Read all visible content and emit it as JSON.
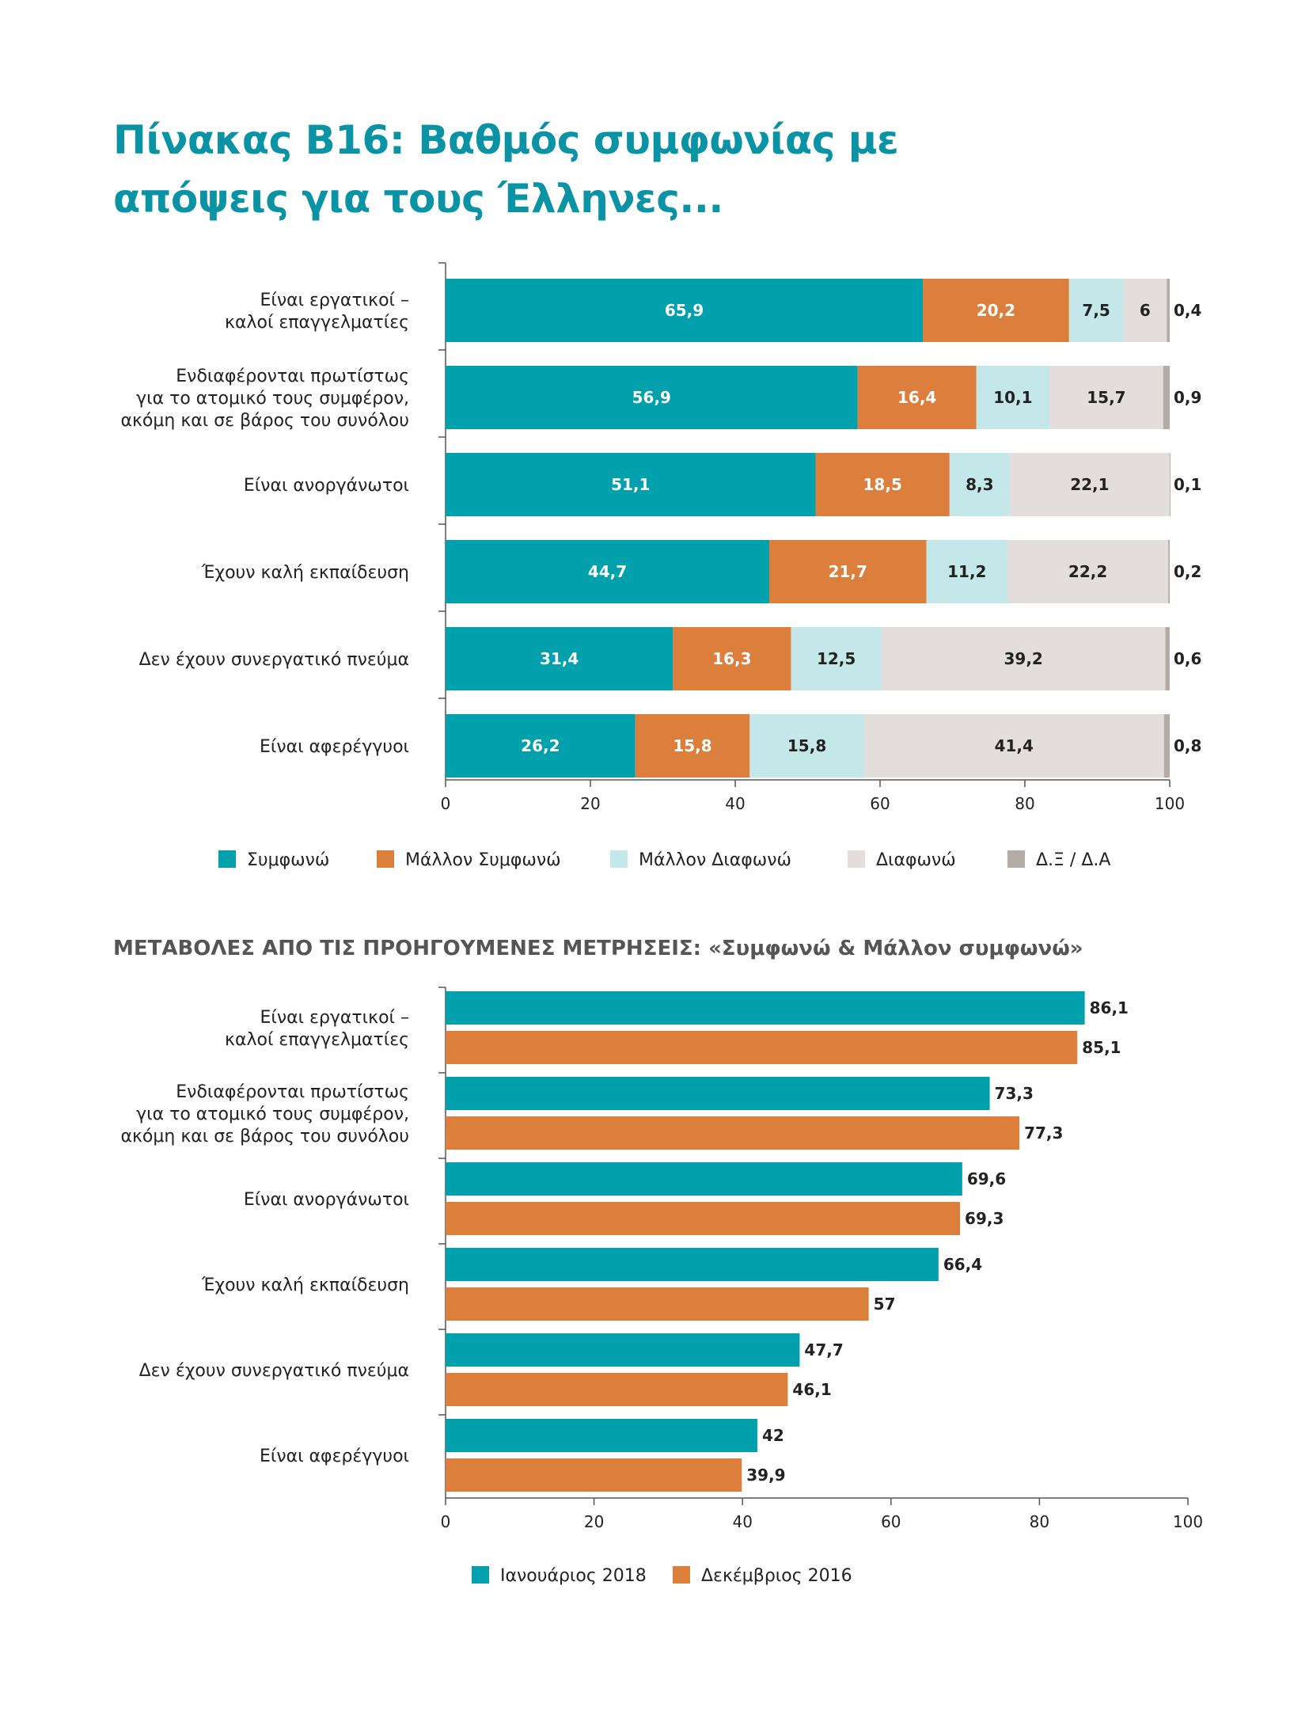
{
  "title": {
    "line1": "Πίνακας Β16: Βαθμός συμφωνίας με",
    "line2": "απόψεις για τους Έλληνες..."
  },
  "section2_title": "ΜΕΤΑΒΟΛΕΣ ΑΠΟ ΤΙΣ ΠΡΟΗΓΟΥΜΕΝΕΣ ΜΕΤΡΗΣΕΙΣ: «Συμφωνώ & Μάλλον συμφωνώ»",
  "colors": {
    "teal": "#00a0ad",
    "orange": "#dd7f3c",
    "light_cyan": "#c4e8ea",
    "light_gray": "#e3dedb",
    "dark_gray": "#b3aba4",
    "axis": "#555555",
    "text": "#222222"
  },
  "chart_data": [
    {
      "type": "bar",
      "orientation": "horizontal",
      "stacked": true,
      "categories": [
        [
          "Είναι εργατικοί –",
          "καλοί επαγγελματίες"
        ],
        [
          "Ενδιαφέρονται πρωτίστως",
          "για το ατομικό τους συμφέρον,",
          "ακόμη και σε βάρος του συνόλου"
        ],
        [
          "Είναι ανοργάνωτοι"
        ],
        [
          "Έχουν καλή εκπαίδευση"
        ],
        [
          "Δεν έχουν συνεργατικό πνεύμα"
        ],
        [
          "Είναι αφερέγγυοι"
        ]
      ],
      "series": [
        {
          "name": "Συμφωνώ",
          "color": "#00a0ad",
          "values": [
            65.9,
            56.9,
            51.1,
            44.7,
            31.4,
            26.2
          ],
          "labels": [
            "65,9",
            "56,9",
            "51,1",
            "44,7",
            "31,4",
            "26,2"
          ]
        },
        {
          "name": "Μάλλον Συμφωνώ",
          "color": "#dd7f3c",
          "values": [
            20.2,
            16.4,
            18.5,
            21.7,
            16.3,
            15.8
          ],
          "labels": [
            "20,2",
            "16,4",
            "18,5",
            "21,7",
            "16,3",
            "15,8"
          ]
        },
        {
          "name": "Μάλλον Διαφωνώ",
          "color": "#c4e8ea",
          "values": [
            7.5,
            10.1,
            8.3,
            11.2,
            12.5,
            15.8
          ],
          "labels": [
            "7,5",
            "10,1",
            "8,3",
            "11,2",
            "12,5",
            "15,8"
          ]
        },
        {
          "name": "Διαφωνώ",
          "color": "#e3dedb",
          "values": [
            6,
            15.7,
            22.1,
            22.2,
            39.2,
            41.4
          ],
          "labels": [
            "6",
            "15,7",
            "22,1",
            "22,2",
            "39,2",
            "41,4"
          ]
        },
        {
          "name": "Δ.Ξ / Δ.Α",
          "color": "#b3aba4",
          "values": [
            0.4,
            0.9,
            0.1,
            0.2,
            0.6,
            0.8
          ],
          "labels": [
            "0,4",
            "0,9",
            "0,1",
            "0,2",
            "0,6",
            "0,8"
          ]
        }
      ],
      "xlim": [
        0,
        100
      ],
      "xticks": [
        0,
        20,
        40,
        60,
        80,
        100
      ],
      "legend_position": "bottom"
    },
    {
      "type": "bar",
      "orientation": "horizontal",
      "stacked": false,
      "categories": [
        [
          "Είναι εργατικοί –",
          "καλοί επαγγελματίες"
        ],
        [
          "Ενδιαφέρονται πρωτίστως",
          "για το ατομικό τους συμφέρον,",
          "ακόμη και σε βάρος του συνόλου"
        ],
        [
          "Είναι ανοργάνωτοι"
        ],
        [
          "Έχουν καλή εκπαίδευση"
        ],
        [
          "Δεν έχουν συνεργατικό πνεύμα"
        ],
        [
          "Είναι αφερέγγυοι"
        ]
      ],
      "series": [
        {
          "name": "Ιανουάριος 2018",
          "color": "#00a0ad",
          "values": [
            86.1,
            73.3,
            69.6,
            66.4,
            47.7,
            42
          ],
          "labels": [
            "86,1",
            "73,3",
            "69,6",
            "66,4",
            "47,7",
            "42"
          ]
        },
        {
          "name": "Δεκέμβριος 2016",
          "color": "#dd7f3c",
          "values": [
            85.1,
            77.3,
            69.3,
            57,
            46.1,
            39.9
          ],
          "labels": [
            "85,1",
            "77,3",
            "69,3",
            "57",
            "46,1",
            "39,9"
          ]
        }
      ],
      "xlim": [
        0,
        100
      ],
      "xticks": [
        0,
        20,
        40,
        60,
        80,
        100
      ],
      "legend_position": "bottom"
    }
  ]
}
